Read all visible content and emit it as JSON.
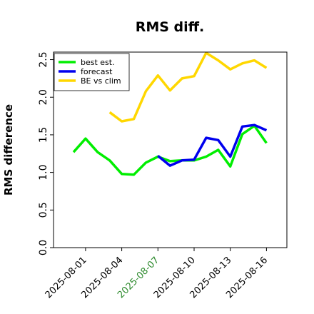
{
  "chart_data": {
    "type": "line",
    "title": "RMS diff.",
    "xlabel": "",
    "ylabel": "RMS difference",
    "ylim": [
      0.0,
      2.6
    ],
    "yticks": [
      "0.0",
      "0.5",
      "1.0",
      "1.5",
      "2.0",
      "2.5"
    ],
    "x": [
      "2025-07-31",
      "2025-08-01",
      "2025-08-02",
      "2025-08-03",
      "2025-08-04",
      "2025-08-05",
      "2025-08-06",
      "2025-08-07",
      "2025-08-08",
      "2025-08-09",
      "2025-08-10",
      "2025-08-11",
      "2025-08-12",
      "2025-08-13",
      "2025-08-14",
      "2025-08-15",
      "2025-08-16"
    ],
    "xticks": [
      {
        "label": "2025-08-01",
        "color": "#000000"
      },
      {
        "label": "2025-08-04",
        "color": "#000000"
      },
      {
        "label": "2025-08-07",
        "color": "#2e8b2e"
      },
      {
        "label": "2025-08-10",
        "color": "#000000"
      },
      {
        "label": "2025-08-13",
        "color": "#000000"
      },
      {
        "label": "2025-08-16",
        "color": "#000000"
      }
    ],
    "legend_position": "top-left",
    "grid": false,
    "series": [
      {
        "name": "best est.",
        "color": "#00ee00",
        "values": [
          1.27,
          1.45,
          1.27,
          1.16,
          0.98,
          0.97,
          1.13,
          1.21,
          1.15,
          1.16,
          1.16,
          1.21,
          1.3,
          1.08,
          1.51,
          1.62,
          1.39
        ]
      },
      {
        "name": "forecast",
        "color": "#0000ee",
        "values": [
          null,
          null,
          null,
          null,
          null,
          null,
          null,
          1.22,
          1.09,
          1.16,
          1.17,
          1.46,
          1.43,
          1.21,
          1.61,
          1.63,
          1.56
        ]
      },
      {
        "name": "BE vs clim",
        "color": "#ffd700",
        "values": [
          null,
          null,
          null,
          1.8,
          1.68,
          1.71,
          2.08,
          2.29,
          2.09,
          2.25,
          2.28,
          2.59,
          2.49,
          2.37,
          2.45,
          2.49,
          2.39
        ]
      }
    ]
  }
}
